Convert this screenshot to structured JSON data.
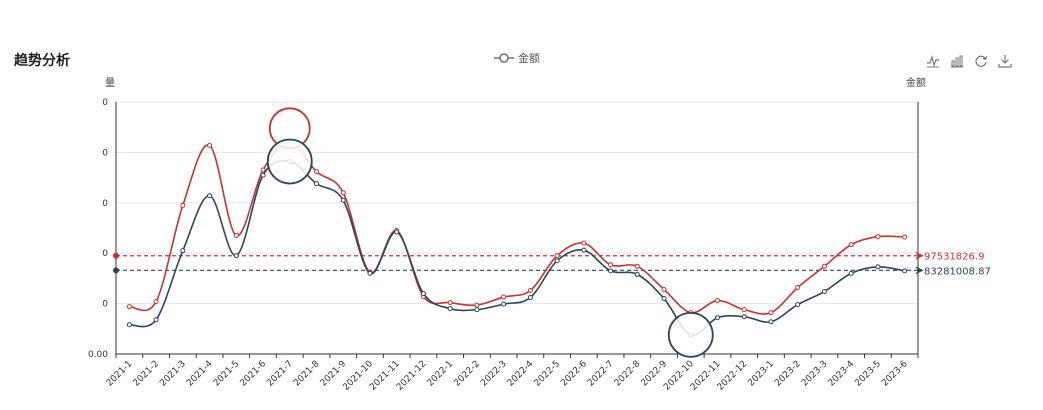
{
  "page": {
    "title": "趋势分析"
  },
  "legend": {
    "label": "金额"
  },
  "toolbox": {
    "icons": [
      "line-chart-icon",
      "bar-chart-icon",
      "refresh-icon",
      "download-icon"
    ]
  },
  "chart_data": {
    "type": "line",
    "title": "趋势分析",
    "ylabel_left": "量",
    "ylabel_right": "金额",
    "y_tick_labels": [
      "0.00",
      "0",
      "0",
      "0",
      "0",
      "0"
    ],
    "ylim": [
      0,
      5
    ],
    "grid": true,
    "legend_position": "top-center",
    "categories": [
      "2021-1",
      "2021-2",
      "2021-3",
      "2021-4",
      "2021-5",
      "2021-6",
      "2021-7",
      "2021-8",
      "2021-9",
      "2021-10",
      "2021-11",
      "2021-12",
      "2022-1",
      "2022-2",
      "2022-3",
      "2022-4",
      "2022-5",
      "2022-6",
      "2022-7",
      "2022-8",
      "2022-9",
      "2022-10",
      "2022-11",
      "2022-12",
      "2023-1",
      "2023-2",
      "2023-3",
      "2023-4",
      "2023-5",
      "2023-6"
    ],
    "series": [
      {
        "name": "",
        "color": "#c23531",
        "values": [
          0.94,
          1.04,
          2.95,
          4.14,
          2.35,
          3.65,
          4.2,
          3.62,
          3.2,
          1.62,
          2.45,
          1.14,
          1.02,
          0.97,
          1.13,
          1.26,
          1.95,
          2.2,
          1.77,
          1.74,
          1.28,
          0.82,
          1.06,
          0.88,
          0.82,
          1.32,
          1.74,
          2.17,
          2.33,
          2.32
        ]
      },
      {
        "name": "",
        "color": "#2f4554",
        "values": [
          0.58,
          0.68,
          2.05,
          3.14,
          1.95,
          3.55,
          3.82,
          3.38,
          3.05,
          1.6,
          2.42,
          1.2,
          0.9,
          0.88,
          0.99,
          1.12,
          1.85,
          2.06,
          1.65,
          1.58,
          1.1,
          0.38,
          0.72,
          0.74,
          0.64,
          0.98,
          1.24,
          1.6,
          1.73,
          1.65
        ]
      }
    ],
    "markpoints": [
      {
        "series": 0,
        "index": 6,
        "label": ""
      },
      {
        "series": 1,
        "index": 6,
        "label": ""
      },
      {
        "series": 1,
        "index": 21,
        "label": ""
      }
    ],
    "marklines": [
      {
        "series": 0,
        "value": 1.95,
        "label": "97531826.9",
        "color": "#c23531"
      },
      {
        "series": 1,
        "value": 1.66,
        "label": "83281008.87",
        "color": "#2f4554"
      }
    ]
  }
}
